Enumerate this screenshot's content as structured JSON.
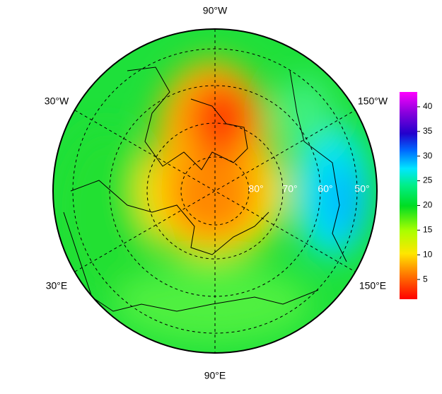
{
  "map": {
    "longitude_labels": [
      "90°W",
      "30°W",
      "150°W",
      "30°E",
      "150°E",
      "90°E"
    ],
    "latitude_labels": [
      "80°",
      "70°",
      "60°",
      "50°"
    ]
  },
  "colorbar": {
    "lim": [
      1,
      43
    ],
    "ticks": [
      5,
      10,
      15,
      20,
      25,
      30,
      35,
      40
    ]
  }
}
